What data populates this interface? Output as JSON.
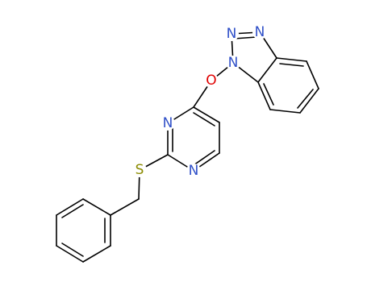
{
  "atoms": [
    {
      "label": "N"
    },
    {
      "label": "N"
    },
    {
      "label": "N"
    },
    {
      "label": "O"
    },
    {
      "label": "N"
    },
    {
      "label": "N"
    },
    {
      "label": "S"
    }
  ]
}
